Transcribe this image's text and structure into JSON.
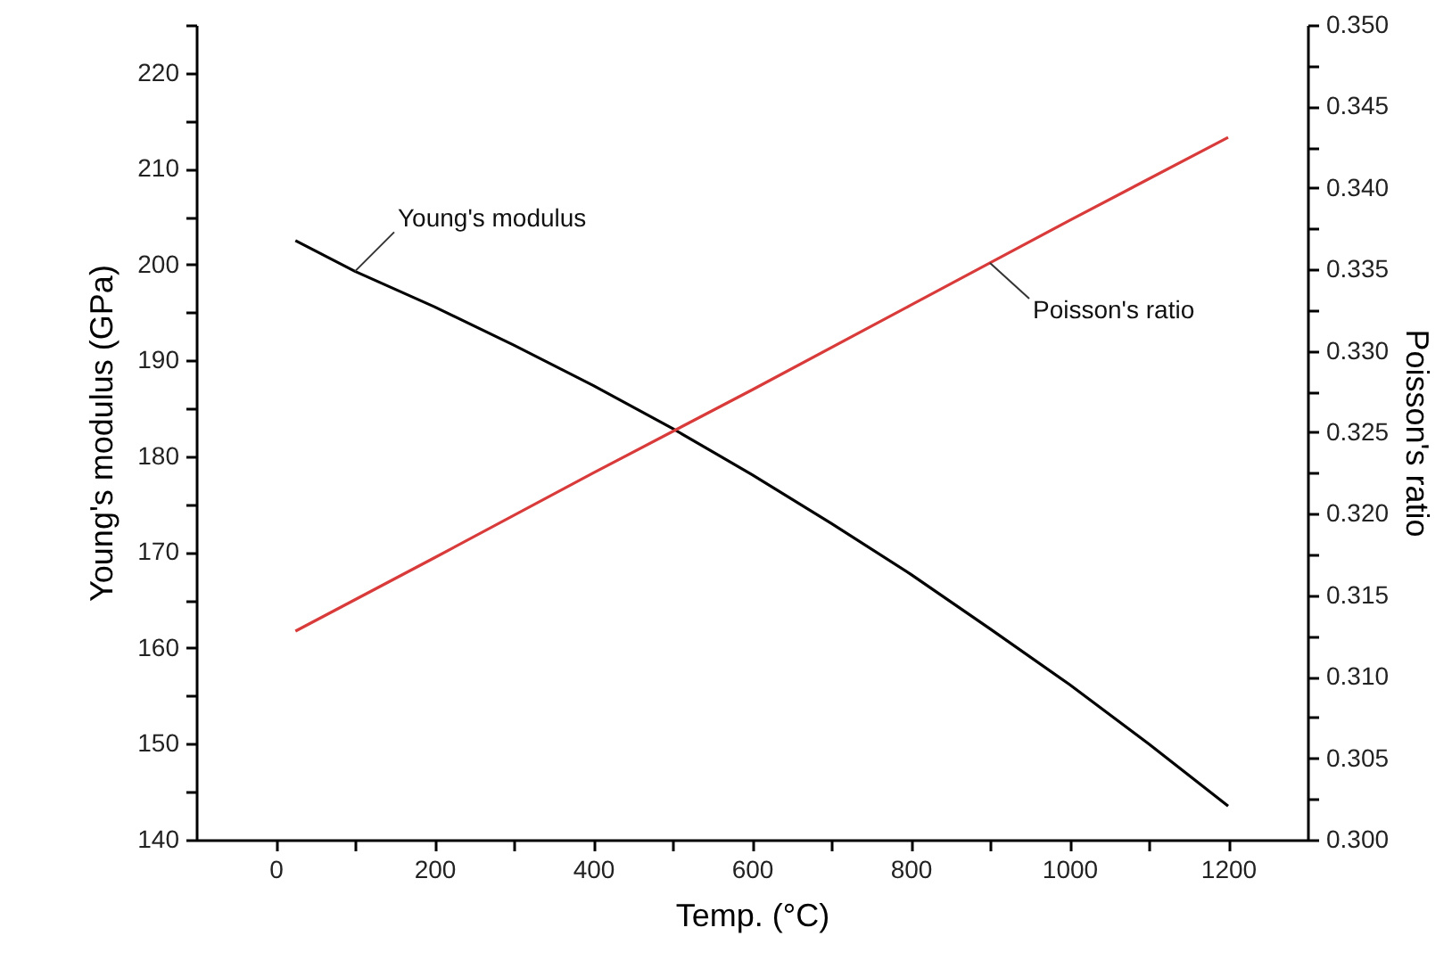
{
  "chart_data": {
    "type": "line",
    "xlabel": "Temp. (°C)",
    "ylabel": "Young's modulus (GPa)",
    "y2label": "Poisson's ratio",
    "xlim": [
      -100,
      1300
    ],
    "xticks": [
      0,
      {
        "value": 100,
        "label": null
      },
      200,
      {
        "value": 300,
        "label": null
      },
      400,
      {
        "value": 500,
        "label": null
      },
      600,
      {
        "value": 700,
        "label": null
      },
      800,
      {
        "value": 900,
        "label": null
      },
      1000,
      {
        "value": 1100,
        "label": null
      },
      1200
    ],
    "ylim": [
      140,
      225
    ],
    "yticks": [
      140,
      {
        "value": 145,
        "label": null
      },
      150,
      {
        "value": 155,
        "label": null
      },
      160,
      {
        "value": 165,
        "label": null
      },
      170,
      {
        "value": 175,
        "label": null
      },
      180,
      {
        "value": 185,
        "label": null
      },
      190,
      {
        "value": 195,
        "label": null
      },
      200,
      {
        "value": 205,
        "label": null
      },
      210,
      {
        "value": 215,
        "label": null
      },
      220,
      {
        "value": 225,
        "label": null
      }
    ],
    "y2lim": [
      0.3,
      0.35
    ],
    "y2ticks": [
      {
        "value": 0.3,
        "label": "0.300"
      },
      {
        "value": 0.3025,
        "label": null
      },
      {
        "value": 0.305,
        "label": "0.305"
      },
      {
        "value": 0.3075,
        "label": null
      },
      {
        "value": 0.31,
        "label": "0.310"
      },
      {
        "value": 0.3125,
        "label": null
      },
      {
        "value": 0.315,
        "label": "0.315"
      },
      {
        "value": 0.3175,
        "label": null
      },
      {
        "value": 0.32,
        "label": "0.320"
      },
      {
        "value": 0.3225,
        "label": null
      },
      {
        "value": 0.325,
        "label": "0.325"
      },
      {
        "value": 0.3275,
        "label": null
      },
      {
        "value": 0.33,
        "label": "0.330"
      },
      {
        "value": 0.3325,
        "label": null
      },
      {
        "value": 0.335,
        "label": "0.335"
      },
      {
        "value": 0.3375,
        "label": null
      },
      {
        "value": 0.34,
        "label": "0.340"
      },
      {
        "value": 0.3425,
        "label": null
      },
      {
        "value": 0.345,
        "label": "0.345"
      },
      {
        "value": 0.3475,
        "label": null
      },
      {
        "value": 0.35,
        "label": "0.350"
      }
    ],
    "series": [
      {
        "name": "Young's modulus",
        "color": "#000000",
        "x": [
          25,
          100,
          200,
          300,
          400,
          500,
          600,
          700,
          800,
          900,
          1000,
          1100,
          1200
        ],
        "values": [
          202.5,
          199.3,
          195.6,
          191.6,
          187.4,
          182.9,
          178.1,
          173.0,
          167.7,
          162.0,
          156.2,
          150.0,
          143.5
        ]
      },
      {
        "name": "Poisson's ratio",
        "color": "#d93a3a",
        "axis": "y2",
        "x": [
          25,
          200,
          400,
          600,
          800,
          900,
          1000,
          1200
        ],
        "values": [
          0.3128,
          0.3173,
          0.3225,
          0.3276,
          0.3328,
          0.3354,
          0.338,
          0.3431
        ]
      }
    ]
  }
}
